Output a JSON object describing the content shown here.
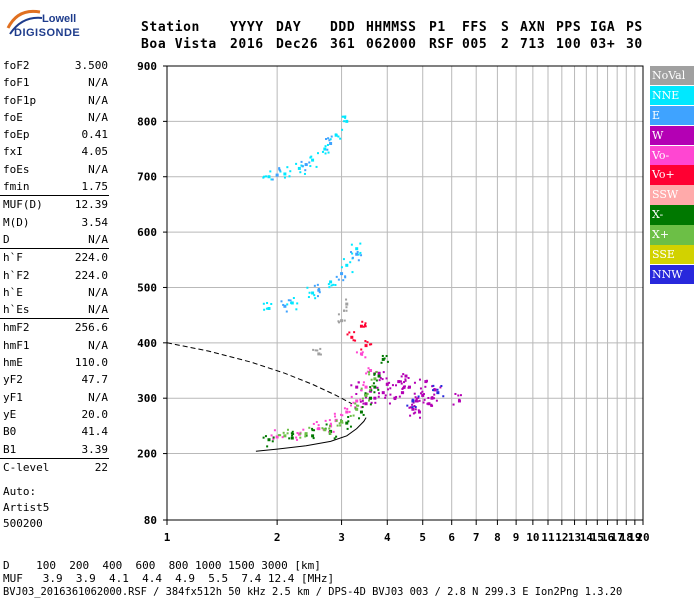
{
  "logo": {
    "line1": "Lowell",
    "line2": "DIGISONDE"
  },
  "header": {
    "cols": [
      {
        "label": "Station",
        "value": "Boa Vista"
      },
      {
        "label": "YYYY",
        "value": "2016"
      },
      {
        "label": "DAY",
        "value": "Dec26"
      },
      {
        "label": "DDD",
        "value": "361"
      },
      {
        "label": "HHMMSS",
        "value": "062000"
      },
      {
        "label": "P1",
        "value": "RSF"
      },
      {
        "label": "FFS",
        "value": "005"
      },
      {
        "label": "S",
        "value": "2"
      },
      {
        "label": "AXN",
        "value": "713"
      },
      {
        "label": "PPS",
        "value": "100"
      },
      {
        "label": "IGA",
        "value": "03+"
      },
      {
        "label": "PS",
        "value": "30"
      }
    ]
  },
  "params": [
    [
      {
        "label": "foF2",
        "value": "3.500"
      },
      {
        "label": "foF1",
        "value": "N/A"
      },
      {
        "label": "foF1p",
        "value": "N/A"
      },
      {
        "label": "foE",
        "value": "N/A"
      },
      {
        "label": "foEp",
        "value": "0.41"
      },
      {
        "label": "fxI",
        "value": "4.05"
      },
      {
        "label": "foEs",
        "value": "N/A"
      },
      {
        "label": "fmin",
        "value": "1.75"
      }
    ],
    [
      {
        "label": "MUF(D)",
        "value": "12.39"
      },
      {
        "label": "M(D)",
        "value": "3.54"
      },
      {
        "label": "D",
        "value": "N/A"
      }
    ],
    [
      {
        "label": "h`F",
        "value": "224.0"
      },
      {
        "label": "h`F2",
        "value": "224.0"
      },
      {
        "label": "h`E",
        "value": "N/A"
      },
      {
        "label": "h`Es",
        "value": "N/A"
      }
    ],
    [
      {
        "label": "hmF2",
        "value": "256.6"
      },
      {
        "label": "hmF1",
        "value": "N/A"
      },
      {
        "label": "hmE",
        "value": "110.0"
      },
      {
        "label": "yF2",
        "value": "47.7"
      },
      {
        "label": "yF1",
        "value": "N/A"
      },
      {
        "label": "yE",
        "value": "20.0"
      },
      {
        "label": "B0",
        "value": "41.4"
      },
      {
        "label": "B1",
        "value": "3.39"
      }
    ],
    [
      {
        "label": "C-level",
        "value": "22"
      }
    ]
  ],
  "auto": {
    "line1": "Auto:",
    "line2": "Artist5",
    "line3": "500200"
  },
  "legend": [
    {
      "label": "NoVal",
      "color": "#a0a0a0"
    },
    {
      "label": "NNE",
      "color": "#00e8ff"
    },
    {
      "label": "E",
      "color": "#3fa3ff"
    },
    {
      "label": "W",
      "color": "#b400b4"
    },
    {
      "label": "Vo-",
      "color": "#ff46d2"
    },
    {
      "label": "Vo+",
      "color": "#ff0032"
    },
    {
      "label": "SSW",
      "color": "#ffaaaa"
    },
    {
      "label": "X-",
      "color": "#007800"
    },
    {
      "label": "X+",
      "color": "#6cbf46"
    },
    {
      "label": "SSE",
      "color": "#d2d200"
    },
    {
      "label": "NNW",
      "color": "#2828dc"
    }
  ],
  "bottom": {
    "line1": "D    100  200  400  600  800 1000 1500 3000 [km]",
    "line2": "MUF   3.9  3.9  4.1  4.4  4.9  5.5  7.4 12.4 [MHz]",
    "line3": "BVJ03_2016361062000.RSF / 384fx512h 50 kHz 2.5 km / DPS-4D BVJ03 003 / 2.8 N 299.3 E Ion2Png 1.3.20"
  },
  "chart_data": {
    "type": "scatter",
    "x_ticks": [
      1,
      2,
      3,
      4,
      5,
      6,
      7,
      8,
      9,
      10,
      11,
      12,
      13,
      14,
      15,
      16,
      17,
      18,
      19,
      20
    ],
    "y_ticks": [
      80,
      200,
      300,
      400,
      500,
      600,
      700,
      800,
      900
    ],
    "xlim": [
      1,
      20
    ],
    "ylim": [
      80,
      900
    ],
    "xscale": "log",
    "grid": true,
    "xlabel": "",
    "ylabel": "",
    "series": [
      {
        "name": "W",
        "color": "#b400b4",
        "points": [
          [
            4.2,
            300
          ],
          [
            4.4,
            310
          ],
          [
            4.6,
            320
          ],
          [
            4.8,
            295
          ],
          [
            5.0,
            305
          ],
          [
            5.2,
            290
          ],
          [
            5.4,
            315
          ],
          [
            4.3,
            330
          ],
          [
            4.7,
            280
          ],
          [
            5.1,
            330
          ],
          [
            3.9,
            310
          ],
          [
            3.7,
            300
          ],
          [
            3.5,
            290
          ],
          [
            6.3,
            295
          ],
          [
            4.5,
            340
          ],
          [
            4.9,
            275
          ],
          [
            5.3,
            300
          ],
          [
            3.8,
            345
          ],
          [
            4.0,
            325
          ],
          [
            3.3,
            320
          ]
        ]
      },
      {
        "name": "Vo-",
        "color": "#ff46d2",
        "points": [
          [
            2.0,
            230
          ],
          [
            2.3,
            235
          ],
          [
            2.6,
            245
          ],
          [
            2.9,
            260
          ],
          [
            3.1,
            275
          ],
          [
            3.3,
            295
          ],
          [
            3.5,
            320
          ],
          [
            3.6,
            350
          ],
          [
            3.4,
            380
          ],
          [
            2.8,
            250
          ]
        ]
      },
      {
        "name": "X-",
        "color": "#007800",
        "points": [
          [
            1.9,
            225
          ],
          [
            2.2,
            228
          ],
          [
            2.5,
            232
          ],
          [
            2.8,
            240
          ],
          [
            3.1,
            255
          ],
          [
            3.4,
            275
          ],
          [
            3.6,
            300
          ],
          [
            3.8,
            340
          ],
          [
            3.9,
            370
          ],
          [
            3.7,
            320
          ]
        ]
      },
      {
        "name": "X+",
        "color": "#6cbf46",
        "points": [
          [
            2.1,
            232
          ],
          [
            2.4,
            236
          ],
          [
            2.7,
            243
          ],
          [
            3.0,
            258
          ],
          [
            3.3,
            280
          ],
          [
            3.5,
            305
          ],
          [
            3.7,
            335
          ]
        ]
      },
      {
        "name": "NNE",
        "color": "#00e8ff",
        "points": [
          [
            1.9,
            700
          ],
          [
            2.1,
            705
          ],
          [
            2.3,
            715
          ],
          [
            2.5,
            730
          ],
          [
            2.7,
            750
          ],
          [
            2.9,
            775
          ],
          [
            3.1,
            800
          ],
          [
            1.9,
            462
          ],
          [
            2.2,
            472
          ],
          [
            2.5,
            490
          ],
          [
            2.8,
            510
          ],
          [
            3.1,
            540
          ],
          [
            3.3,
            570
          ]
        ]
      },
      {
        "name": "E",
        "color": "#3fa3ff",
        "points": [
          [
            2.0,
            703
          ],
          [
            2.4,
            722
          ],
          [
            2.8,
            760
          ],
          [
            2.1,
            466
          ],
          [
            2.6,
            495
          ],
          [
            3.0,
            525
          ],
          [
            3.3,
            560
          ]
        ]
      },
      {
        "name": "Vo+",
        "color": "#ff0032",
        "points": [
          [
            3.2,
            410
          ],
          [
            3.4,
            430
          ],
          [
            3.5,
            395
          ]
        ]
      },
      {
        "name": "NNW",
        "color": "#2828dc",
        "points": [
          [
            4.7,
            295
          ],
          [
            5.5,
            310
          ]
        ]
      },
      {
        "name": "NoVal",
        "color": "#a0a0a0",
        "points": [
          [
            3.0,
            440
          ],
          [
            2.6,
            380
          ],
          [
            3.1,
            470
          ]
        ]
      }
    ],
    "profile": {
      "f": [
        1.75,
        2.0,
        2.4,
        2.8,
        3.1,
        3.3,
        3.45,
        3.5
      ],
      "h": [
        204,
        208,
        214,
        222,
        232,
        245,
        258,
        265
      ]
    },
    "profile_dashed": {
      "f": [
        1.0,
        1.3,
        1.7,
        2.1,
        2.5,
        2.9,
        3.2
      ],
      "h": [
        400,
        385,
        365,
        345,
        325,
        305,
        290
      ]
    }
  }
}
